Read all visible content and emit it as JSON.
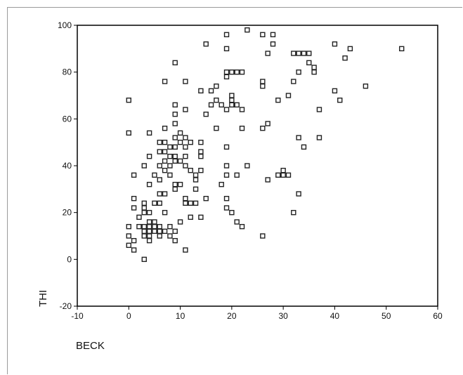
{
  "chart_data": {
    "type": "scatter",
    "title": "",
    "xlabel": "BECK",
    "ylabel": "THI",
    "xlim": [
      -10,
      60
    ],
    "ylim": [
      -20,
      100
    ],
    "xticks": [
      -10,
      0,
      10,
      20,
      30,
      40,
      50,
      60
    ],
    "yticks": [
      -20,
      0,
      20,
      40,
      60,
      80,
      100
    ],
    "grid": false,
    "marker": "hollow-square",
    "series": [
      {
        "points": [
          [
            0,
            68
          ],
          [
            0,
            54
          ],
          [
            0,
            14
          ],
          [
            0,
            10
          ],
          [
            0,
            6
          ],
          [
            1,
            36
          ],
          [
            1,
            26
          ],
          [
            1,
            22
          ],
          [
            1,
            8
          ],
          [
            1,
            4
          ],
          [
            2,
            18
          ],
          [
            2,
            14
          ],
          [
            3,
            40
          ],
          [
            3,
            24
          ],
          [
            3,
            22
          ],
          [
            3,
            20
          ],
          [
            3,
            14
          ],
          [
            3,
            12
          ],
          [
            3,
            10
          ],
          [
            3,
            0
          ],
          [
            4,
            54
          ],
          [
            4,
            44
          ],
          [
            4,
            32
          ],
          [
            4,
            20
          ],
          [
            4,
            16
          ],
          [
            4,
            14
          ],
          [
            4,
            12
          ],
          [
            4,
            10
          ],
          [
            4,
            8
          ],
          [
            5,
            36
          ],
          [
            5,
            24
          ],
          [
            5,
            16
          ],
          [
            5,
            14
          ],
          [
            5,
            12
          ],
          [
            6,
            50
          ],
          [
            6,
            46
          ],
          [
            6,
            40
          ],
          [
            6,
            34
          ],
          [
            6,
            28
          ],
          [
            6,
            24
          ],
          [
            6,
            14
          ],
          [
            6,
            12
          ],
          [
            6,
            10
          ],
          [
            7,
            76
          ],
          [
            7,
            56
          ],
          [
            7,
            50
          ],
          [
            7,
            46
          ],
          [
            7,
            42
          ],
          [
            7,
            38
          ],
          [
            7,
            28
          ],
          [
            7,
            20
          ],
          [
            7,
            12
          ],
          [
            8,
            48
          ],
          [
            8,
            44
          ],
          [
            8,
            40
          ],
          [
            8,
            36
          ],
          [
            8,
            14
          ],
          [
            8,
            10
          ],
          [
            9,
            84
          ],
          [
            9,
            66
          ],
          [
            9,
            62
          ],
          [
            9,
            58
          ],
          [
            9,
            52
          ],
          [
            9,
            48
          ],
          [
            9,
            44
          ],
          [
            9,
            42
          ],
          [
            9,
            32
          ],
          [
            9,
            30
          ],
          [
            9,
            12
          ],
          [
            9,
            8
          ],
          [
            10,
            54
          ],
          [
            10,
            50
          ],
          [
            10,
            42
          ],
          [
            10,
            32
          ],
          [
            10,
            16
          ],
          [
            11,
            76
          ],
          [
            11,
            64
          ],
          [
            11,
            52
          ],
          [
            11,
            48
          ],
          [
            11,
            44
          ],
          [
            11,
            40
          ],
          [
            11,
            26
          ],
          [
            11,
            24
          ],
          [
            11,
            4
          ],
          [
            12,
            50
          ],
          [
            12,
            38
          ],
          [
            12,
            24
          ],
          [
            12,
            18
          ],
          [
            13,
            36
          ],
          [
            13,
            34
          ],
          [
            13,
            30
          ],
          [
            13,
            24
          ],
          [
            14,
            72
          ],
          [
            14,
            50
          ],
          [
            14,
            46
          ],
          [
            14,
            44
          ],
          [
            14,
            38
          ],
          [
            14,
            18
          ],
          [
            15,
            92
          ],
          [
            15,
            62
          ],
          [
            15,
            26
          ],
          [
            16,
            72
          ],
          [
            16,
            66
          ],
          [
            17,
            74
          ],
          [
            17,
            68
          ],
          [
            17,
            56
          ],
          [
            18,
            66
          ],
          [
            18,
            32
          ],
          [
            19,
            96
          ],
          [
            19,
            90
          ],
          [
            19,
            80
          ],
          [
            19,
            78
          ],
          [
            19,
            64
          ],
          [
            19,
            48
          ],
          [
            19,
            40
          ],
          [
            19,
            36
          ],
          [
            19,
            26
          ],
          [
            19,
            22
          ],
          [
            20,
            80
          ],
          [
            20,
            70
          ],
          [
            20,
            68
          ],
          [
            20,
            66
          ],
          [
            20,
            20
          ],
          [
            21,
            80
          ],
          [
            21,
            36
          ],
          [
            21,
            16
          ],
          [
            21,
            66
          ],
          [
            22,
            80
          ],
          [
            22,
            64
          ],
          [
            22,
            56
          ],
          [
            22,
            14
          ],
          [
            23,
            98
          ],
          [
            23,
            40
          ],
          [
            26,
            96
          ],
          [
            26,
            76
          ],
          [
            26,
            74
          ],
          [
            26,
            56
          ],
          [
            26,
            10
          ],
          [
            27,
            88
          ],
          [
            27,
            58
          ],
          [
            27,
            34
          ],
          [
            28,
            96
          ],
          [
            28,
            92
          ],
          [
            29,
            68
          ],
          [
            29,
            36
          ],
          [
            30,
            38
          ],
          [
            30,
            36
          ],
          [
            31,
            70
          ],
          [
            31,
            36
          ],
          [
            32,
            88
          ],
          [
            32,
            76
          ],
          [
            32,
            20
          ],
          [
            33,
            88
          ],
          [
            33,
            80
          ],
          [
            33,
            52
          ],
          [
            33,
            28
          ],
          [
            34,
            88
          ],
          [
            34,
            48
          ],
          [
            35,
            88
          ],
          [
            35,
            84
          ],
          [
            36,
            82
          ],
          [
            36,
            80
          ],
          [
            37,
            64
          ],
          [
            37,
            52
          ],
          [
            40,
            92
          ],
          [
            40,
            72
          ],
          [
            41,
            68
          ],
          [
            42,
            86
          ],
          [
            43,
            90
          ],
          [
            46,
            74
          ],
          [
            53,
            90
          ]
        ]
      }
    ]
  }
}
